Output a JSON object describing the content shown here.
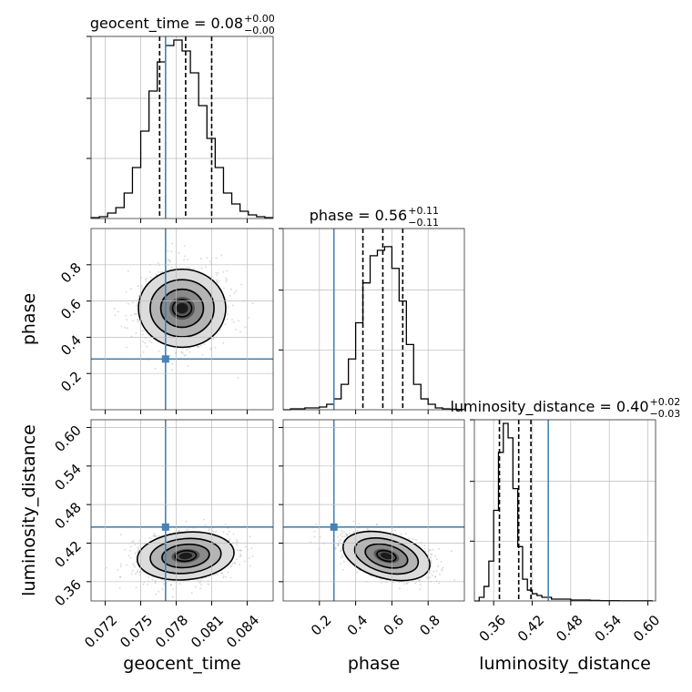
{
  "chart_data": {
    "type": "corner",
    "parameters": [
      "geocent_time",
      "phase",
      "luminosity_distance"
    ],
    "truth_color": "#4682b4",
    "truths": {
      "geocent_time": 0.0771,
      "phase": 0.28,
      "luminosity_distance": 0.445
    },
    "axes": {
      "geocent_time": {
        "range": [
          0.0708,
          0.0862
        ],
        "ticks": [
          0.072,
          0.075,
          0.078,
          0.081,
          0.084
        ],
        "tick_labels": [
          "0.072",
          "0.075",
          "0.078",
          "0.081",
          "0.084"
        ]
      },
      "phase": {
        "range": [
          0.0,
          1.0
        ],
        "ticks": [
          0.2,
          0.4,
          0.6,
          0.8
        ],
        "tick_labels": [
          "0.2",
          "0.4",
          "0.6",
          "0.8"
        ]
      },
      "luminosity_distance": {
        "range": [
          0.33,
          0.612
        ],
        "ticks": [
          0.36,
          0.42,
          0.48,
          0.54,
          0.6
        ],
        "tick_labels": [
          "0.36",
          "0.42",
          "0.48",
          "0.54",
          "0.60"
        ]
      }
    },
    "titles": [
      {
        "param": "geocent_time",
        "label": "geocent_time = 0.08",
        "plus": "+0.00",
        "minus": "−0.00"
      },
      {
        "param": "phase",
        "label": "phase = 0.56",
        "plus": "+0.11",
        "minus": "−0.11"
      },
      {
        "param": "luminosity_distance",
        "label": "luminosity_distance = 0.40",
        "plus": "+0.02",
        "minus": "−0.03"
      }
    ],
    "quantiles": {
      "geocent_time": [
        0.0766,
        0.0788,
        0.081
      ],
      "phase": [
        0.44,
        0.55,
        0.66
      ],
      "luminosity_distance": [
        0.369,
        0.399,
        0.418
      ]
    },
    "histograms": {
      "geocent_time": {
        "edges_start": 0.0708,
        "bin_width": 0.0007,
        "counts": [
          0.5,
          1,
          3,
          6,
          14,
          28,
          48,
          70,
          86,
          95,
          98,
          92,
          80,
          62,
          44,
          28,
          14,
          8,
          4,
          2,
          1,
          0.5
        ],
        "ymax": 100
      },
      "phase": {
        "edges_start": 0.0,
        "bin_width": 0.04,
        "counts": [
          0,
          0.5,
          0.5,
          1,
          1,
          1.5,
          3,
          6,
          14,
          28,
          48,
          70,
          85,
          88,
          90,
          78,
          60,
          36,
          14,
          6,
          3,
          1,
          0.5,
          0.3,
          0.2
        ],
        "ymax": 100
      },
      "luminosity_distance": {
        "edges_start": 0.33,
        "bin_width": 0.0075,
        "counts": [
          0,
          2,
          8,
          22,
          50,
          82,
          98,
          90,
          62,
          30,
          12,
          6,
          4,
          3,
          2,
          2,
          1,
          1,
          1,
          1,
          0.5,
          0.5,
          0.5,
          0.5,
          0.3,
          0.3,
          0.2,
          0.2,
          0.2,
          0.2,
          0.1,
          0.1,
          0.1,
          0.1,
          0.1,
          0.1,
          0.1
        ],
        "ymax": 100
      }
    },
    "hist_y_ticks": [
      33,
      66,
      100
    ],
    "contours": [
      {
        "x": "geocent_time",
        "y": "phase",
        "center": [
          0.0785,
          0.56
        ],
        "sigma": [
          0.0018,
          0.105
        ],
        "corr": 0.0
      },
      {
        "x": "geocent_time",
        "y": "luminosity_distance",
        "center": [
          0.0788,
          0.4
        ],
        "sigma": [
          0.002,
          0.018
        ],
        "corr": 0.15
      },
      {
        "x": "phase",
        "y": "luminosity_distance",
        "center": [
          0.57,
          0.4
        ],
        "sigma": [
          0.12,
          0.017
        ],
        "corr": -0.45
      }
    ],
    "xlabels": [
      "geocent_time",
      "phase",
      "luminosity_distance"
    ],
    "ylabels": [
      "",
      "phase",
      "luminosity_distance"
    ],
    "grid": true
  }
}
